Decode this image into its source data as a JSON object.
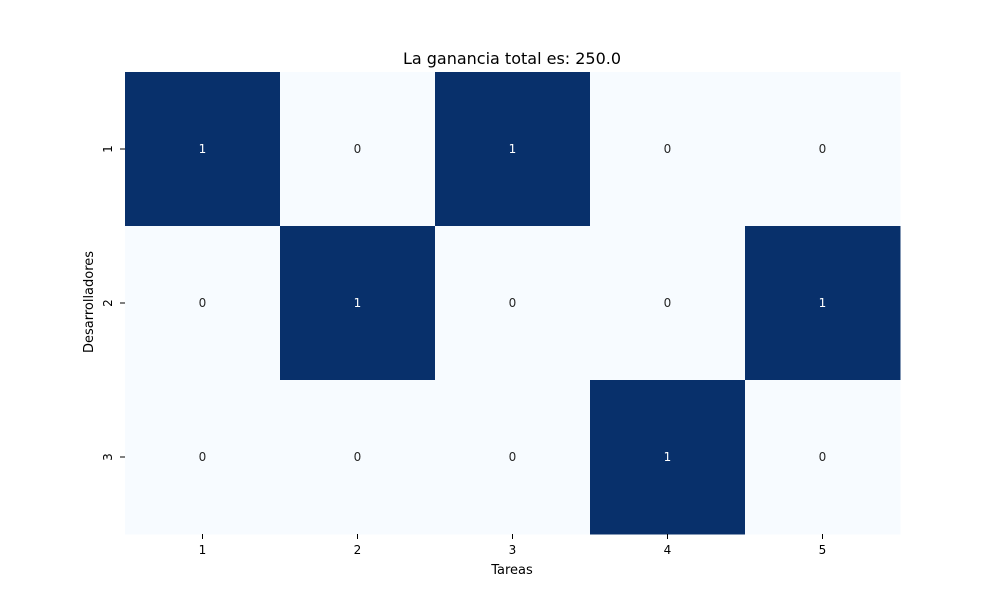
{
  "chart_data": {
    "type": "heatmap",
    "title": "La ganancia total es: 250.0",
    "xlabel": "Tareas",
    "ylabel": "Desarrolladores",
    "x_categories": [
      "1",
      "2",
      "3",
      "4",
      "5"
    ],
    "y_categories": [
      "1",
      "2",
      "3"
    ],
    "values": [
      [
        1,
        0,
        1,
        0,
        0
      ],
      [
        0,
        1,
        0,
        0,
        1
      ],
      [
        0,
        0,
        0,
        1,
        0
      ]
    ],
    "annotations": true,
    "colorbar": false,
    "colormap": "Blues",
    "colors": {
      "low": "#f7fbff",
      "high": "#08306b",
      "text_on_low": "#262626",
      "text_on_high": "#ffffff"
    }
  }
}
